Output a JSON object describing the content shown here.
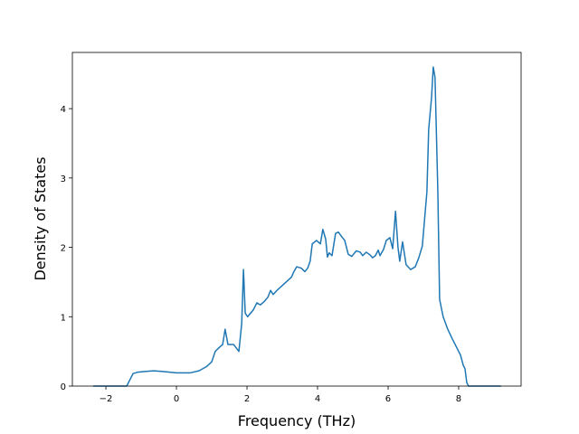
{
  "chart_data": {
    "type": "line",
    "xlabel": "Frequency (THz)",
    "ylabel": "Density of States",
    "xlim": [
      -2.95,
      9.77
    ],
    "ylim": [
      0,
      4.81
    ],
    "xticks": [
      {
        "value": -2,
        "label": "−2"
      },
      0,
      2,
      4,
      6,
      8
    ],
    "yticks": [
      0,
      1,
      2,
      3,
      4
    ],
    "series": [
      {
        "color": "#1f77b4",
        "x": [
          -2.36,
          -1.41,
          -1.23,
          -1.1,
          -0.9,
          -0.64,
          -0.38,
          0,
          0.38,
          0.64,
          0.85,
          1.0,
          1.1,
          1.2,
          1.31,
          1.38,
          1.46,
          1.62,
          1.77,
          1.85,
          1.9,
          1.95,
          2.02,
          2.18,
          2.28,
          2.38,
          2.49,
          2.59,
          2.67,
          2.74,
          2.85,
          3.0,
          3.15,
          3.26,
          3.33,
          3.41,
          3.54,
          3.64,
          3.72,
          3.79,
          3.85,
          3.97,
          4.08,
          4.15,
          4.23,
          4.28,
          4.33,
          4.41,
          4.51,
          4.59,
          4.69,
          4.77,
          4.87,
          4.97,
          5.1,
          5.21,
          5.28,
          5.38,
          5.49,
          5.56,
          5.64,
          5.72,
          5.77,
          5.87,
          5.95,
          6.05,
          6.13,
          6.21,
          6.28,
          6.33,
          6.41,
          6.51,
          6.64,
          6.77,
          6.87,
          6.97,
          7.1,
          7.15,
          7.23,
          7.28,
          7.33,
          7.41,
          7.46,
          7.56,
          7.69,
          7.82,
          7.95,
          8.05,
          8.13,
          8.18,
          8.23,
          8.28,
          9.2
        ],
        "values": [
          0,
          0,
          0.18,
          0.2,
          0.21,
          0.22,
          0.21,
          0.19,
          0.19,
          0.22,
          0.28,
          0.35,
          0.5,
          0.55,
          0.6,
          0.82,
          0.6,
          0.6,
          0.5,
          0.9,
          1.68,
          1.05,
          1.0,
          1.1,
          1.2,
          1.17,
          1.22,
          1.28,
          1.38,
          1.32,
          1.38,
          1.45,
          1.52,
          1.57,
          1.65,
          1.72,
          1.7,
          1.65,
          1.7,
          1.8,
          2.05,
          2.1,
          2.05,
          2.26,
          2.12,
          1.86,
          1.92,
          1.88,
          2.2,
          2.22,
          2.15,
          2.1,
          1.9,
          1.87,
          1.95,
          1.93,
          1.88,
          1.93,
          1.89,
          1.85,
          1.88,
          1.96,
          1.88,
          1.97,
          2.1,
          2.14,
          1.98,
          2.52,
          2.0,
          1.8,
          2.08,
          1.75,
          1.68,
          1.72,
          1.85,
          2.02,
          2.8,
          3.7,
          4.15,
          4.6,
          4.45,
          2.8,
          1.25,
          1.0,
          0.82,
          0.68,
          0.55,
          0.45,
          0.3,
          0.25,
          0.05,
          0,
          0
        ]
      }
    ]
  }
}
